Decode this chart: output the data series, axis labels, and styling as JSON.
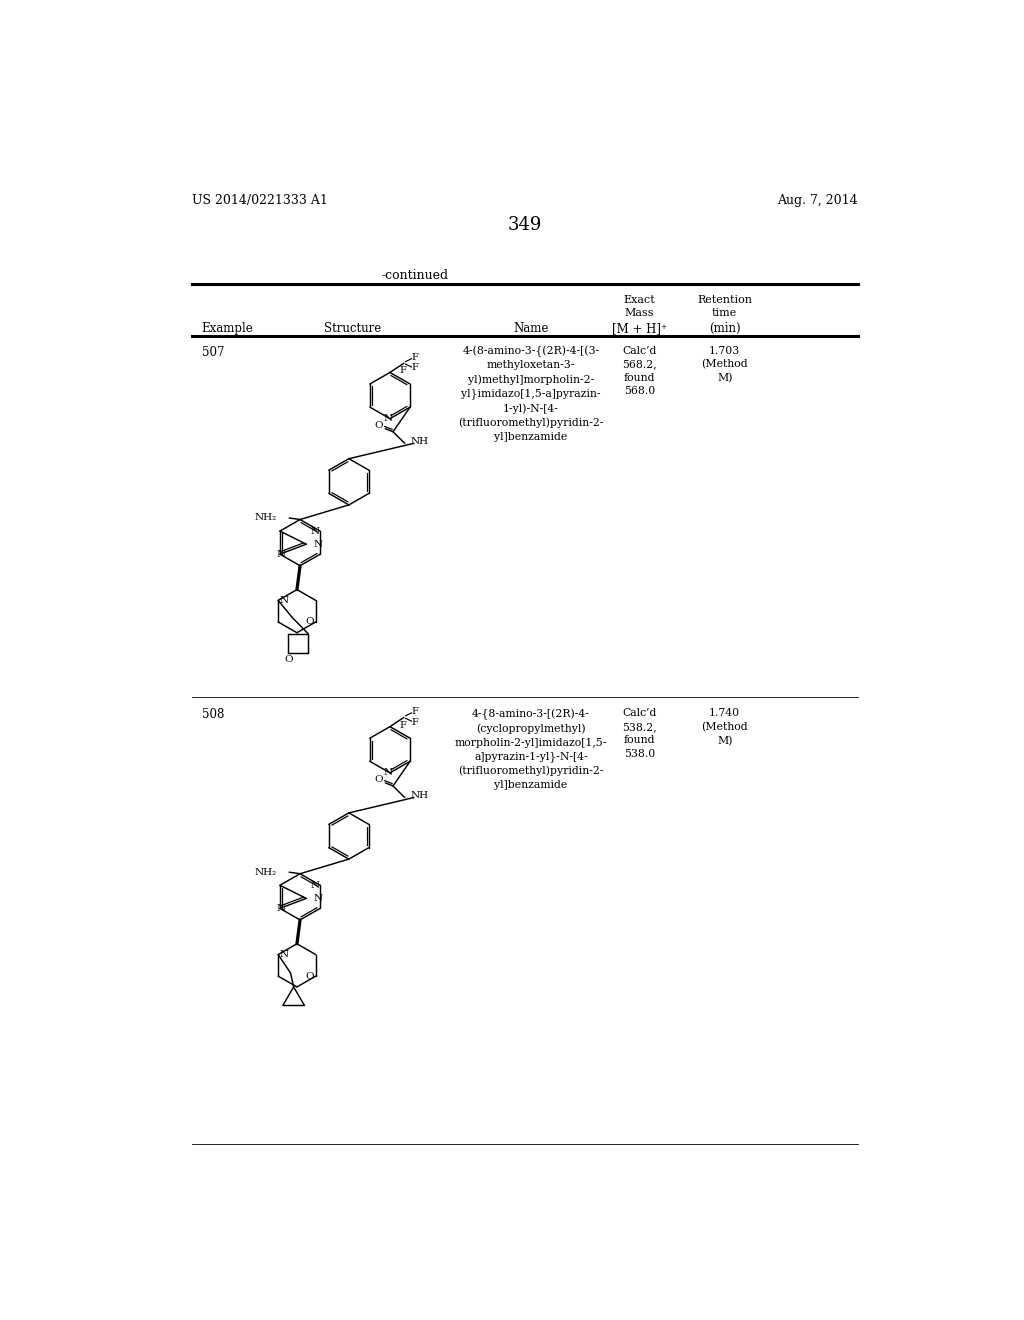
{
  "page_num": "349",
  "patent_left": "US 2014/0221333 A1",
  "patent_right": "Aug. 7, 2014",
  "continued_label": "-continued",
  "bg_color": "#ffffff",
  "row1_example": "507",
  "row1_name_lines": [
    "4-(8-amino-3-{(2R)-4-[(3-",
    "methyloxetan-3-",
    "yl)methyl]morpholin-2-",
    "yl}imidazo[1,5-a]pyrazin-",
    "1-yl)-N-[4-",
    "(trifluoromethyl)pyridin-2-",
    "yl]benzamide"
  ],
  "row1_mass": "Calc’d\n568.2,\nfound\n568.0",
  "row1_rt": "1.703\n(Method\nM)",
  "row2_example": "508",
  "row2_name_lines": [
    "4-{8-amino-3-[(2R)-4-",
    "(cyclopropylmethyl)",
    "morpholin-2-yl]imidazo[1,5-",
    "a]pyrazin-1-yl}-N-[4-",
    "(trifluoromethyl)pyridin-2-",
    "yl]benzamide"
  ],
  "row2_mass": "Calc’d\n538.2,\nfound\n538.0",
  "row2_rt": "1.740\n(Method\nM)"
}
